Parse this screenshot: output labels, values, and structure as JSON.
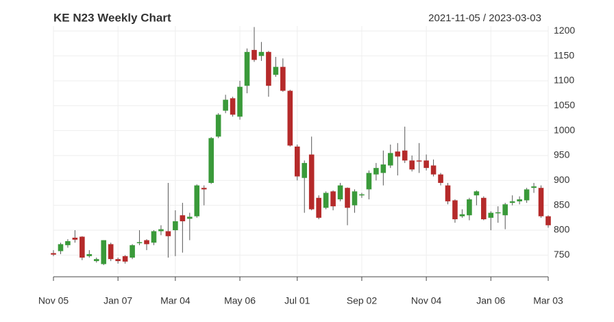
{
  "chart_data": {
    "type": "candlestick",
    "title": "KE N23 Weekly Chart",
    "subtitle": "2021-11-05 / 2023-03-03",
    "categories": [
      "Nov 05",
      null,
      null,
      null,
      null,
      null,
      null,
      null,
      null,
      "Jan 07",
      null,
      null,
      null,
      null,
      null,
      null,
      null,
      "Mar 04",
      null,
      null,
      null,
      null,
      null,
      null,
      null,
      null,
      "May 06",
      null,
      null,
      null,
      null,
      null,
      null,
      null,
      "Jul 01",
      null,
      null,
      null,
      null,
      null,
      null,
      null,
      null,
      "Sep 02",
      null,
      null,
      null,
      null,
      null,
      null,
      null,
      null,
      "Nov 04",
      null,
      null,
      null,
      null,
      null,
      null,
      null,
      null,
      "Jan 06",
      null,
      null,
      null,
      null,
      null,
      null,
      null,
      "Mar 03"
    ],
    "open": [
      754,
      758,
      770,
      785,
      787,
      748,
      738,
      732,
      772,
      742,
      748,
      745,
      774,
      780,
      775,
      798,
      798,
      800,
      830,
      823,
      828,
      885,
      895,
      988,
      1040,
      1065,
      1028,
      1090,
      1162,
      1150,
      1158,
      1112,
      1128,
      1080,
      968,
      905,
      952,
      865,
      845,
      878,
      862,
      885,
      850,
      870,
      882,
      912,
      915,
      930,
      958,
      960,
      940,
      940,
      940,
      930,
      912,
      890,
      860,
      828,
      830,
      870,
      865,
      825,
      835,
      830,
      855,
      858,
      860,
      885,
      885,
      828
    ],
    "high": [
      760,
      775,
      782,
      800,
      788,
      760,
      745,
      780,
      775,
      745,
      750,
      772,
      800,
      782,
      800,
      810,
      895,
      840,
      855,
      835,
      892,
      890,
      987,
      1035,
      1072,
      1068,
      1100,
      1165,
      1208,
      1178,
      1160,
      1148,
      1145,
      1082,
      972,
      940,
      988,
      870,
      878,
      880,
      895,
      886,
      882,
      875,
      920,
      935,
      960,
      972,
      975,
      1008,
      950,
      975,
      952,
      942,
      915,
      895,
      862,
      842,
      865,
      880,
      868,
      838,
      848,
      855,
      870,
      868,
      885,
      895,
      890,
      830
    ],
    "low": [
      748,
      752,
      765,
      775,
      740,
      745,
      735,
      730,
      738,
      733,
      733,
      742,
      770,
      760,
      770,
      790,
      745,
      748,
      755,
      780,
      825,
      850,
      893,
      985,
      1035,
      1028,
      1022,
      1075,
      1138,
      1140,
      1068,
      1108,
      1078,
      968,
      900,
      835,
      840,
      822,
      842,
      840,
      858,
      810,
      835,
      865,
      862,
      900,
      890,
      925,
      910,
      935,
      918,
      915,
      920,
      908,
      890,
      852,
      815,
      825,
      820,
      850,
      820,
      800,
      815,
      802,
      850,
      852,
      855,
      875,
      825,
      805
    ],
    "close": [
      751,
      772,
      778,
      781,
      745,
      752,
      742,
      780,
      742,
      738,
      737,
      770,
      776,
      772,
      798,
      802,
      788,
      818,
      818,
      827,
      890,
      882,
      985,
      1032,
      1062,
      1032,
      1088,
      1158,
      1142,
      1158,
      1090,
      1128,
      1080,
      970,
      908,
      935,
      842,
      825,
      875,
      848,
      890,
      845,
      878,
      872,
      915,
      925,
      932,
      955,
      948,
      940,
      922,
      938,
      925,
      912,
      895,
      858,
      822,
      832,
      862,
      878,
      822,
      835,
      836,
      852,
      858,
      862,
      882,
      888,
      828,
      810
    ],
    "up_color": "#3a9a3a",
    "down_color": "#b52a2a",
    "ylim": [
      712,
      1210
    ],
    "yticks": [
      750,
      800,
      850,
      900,
      950,
      1000,
      1050,
      1100,
      1150,
      1200
    ],
    "grid": true
  }
}
